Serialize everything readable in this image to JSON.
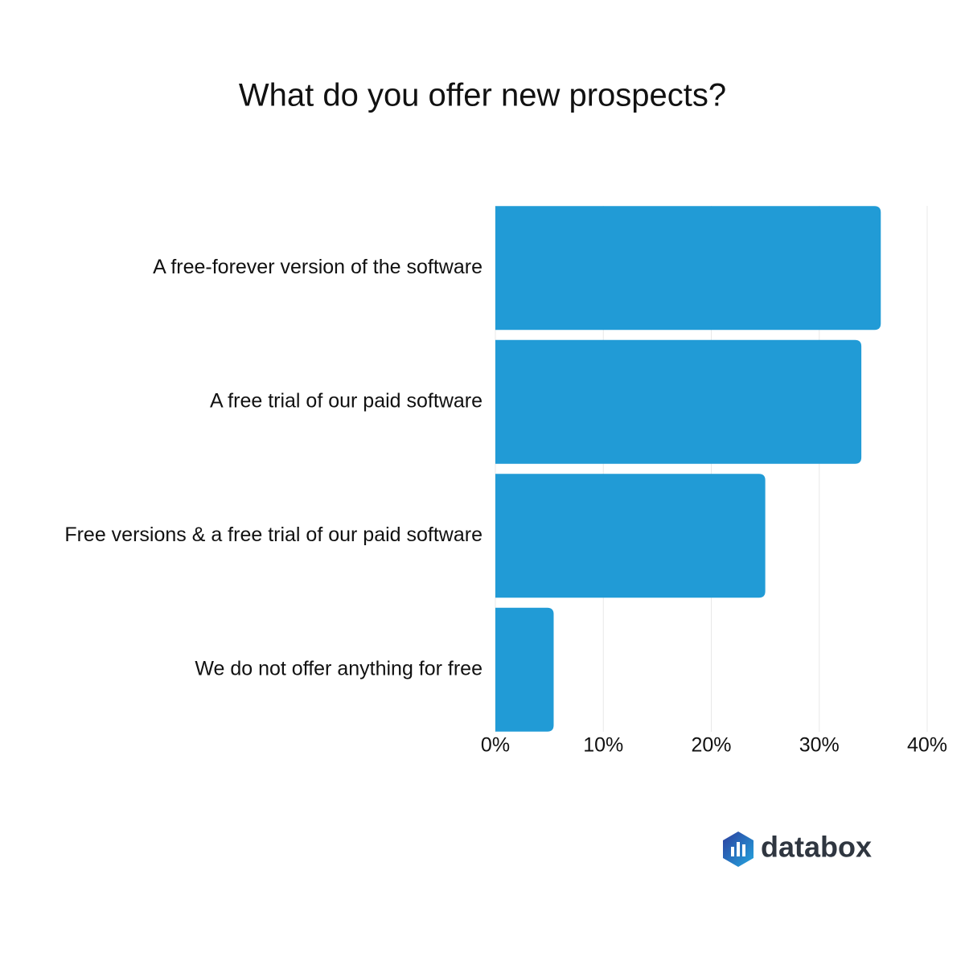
{
  "chart_data": {
    "type": "bar",
    "orientation": "horizontal",
    "title": "What do you offer new prospects?",
    "categories": [
      "A free-forever version of the software",
      "A free trial of our paid software",
      "Free versions & a free trial of our paid software",
      "We do not offer anything for free"
    ],
    "values": [
      35.7,
      33.9,
      25.0,
      5.4
    ],
    "color": "#219bd6",
    "xlim": [
      0,
      40
    ],
    "xticks": [
      {
        "value": 0,
        "label": "0%"
      },
      {
        "value": 10,
        "label": "10%"
      },
      {
        "value": 20,
        "label": "20%"
      },
      {
        "value": 30,
        "label": "30%"
      },
      {
        "value": 40,
        "label": "40%"
      }
    ],
    "grid": true,
    "logo_text": "databox"
  }
}
